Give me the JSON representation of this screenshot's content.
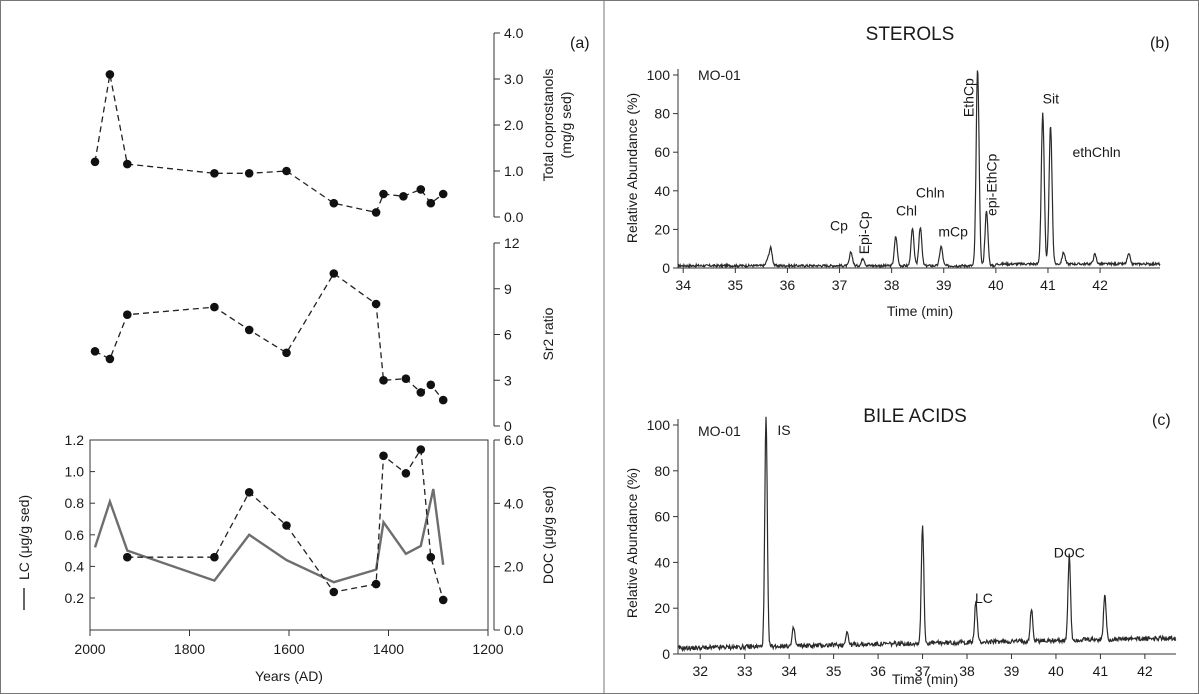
{
  "chart_data": [
    {
      "id": "a",
      "type": "line",
      "panel_label": "(a)",
      "xlabel": "Years (AD)",
      "xlim": [
        2000,
        1200
      ],
      "xticks": [
        "2000",
        "1800",
        "1600",
        "1400",
        "1200"
      ],
      "subplots": [
        {
          "ylabel_lines": [
            "Total coprostanols",
            "(mg/g sed)"
          ],
          "ylim": [
            0,
            4
          ],
          "yticks": [
            "0.0",
            "1.0",
            "2.0",
            "3.0",
            "4.0"
          ],
          "series": [
            {
              "style": "dashed-markers",
              "x": [
                1990,
                1960,
                1925,
                1750,
                1680,
                1605,
                1510,
                1425,
                1410,
                1370,
                1335,
                1315,
                1290
              ],
              "y": [
                1.2,
                3.1,
                1.15,
                0.95,
                0.95,
                1.0,
                0.3,
                0.1,
                0.5,
                0.45,
                0.6,
                0.3,
                0.5
              ]
            }
          ]
        },
        {
          "ylabel_lines": [
            "Sr2 ratio"
          ],
          "ylim": [
            0,
            12
          ],
          "yticks": [
            "0",
            "3",
            "6",
            "9",
            "12"
          ],
          "series": [
            {
              "style": "dashed-markers",
              "x": [
                1990,
                1960,
                1925,
                1750,
                1680,
                1605,
                1510,
                1425,
                1410,
                1365,
                1335,
                1315,
                1290
              ],
              "y": [
                4.9,
                4.4,
                7.3,
                7.8,
                6.3,
                4.8,
                10.0,
                8.0,
                3.0,
                3.1,
                2.2,
                2.7,
                1.7
              ]
            }
          ]
        },
        {
          "ylabel_left": "LC (μg/g sed)",
          "ylabel_right": "DOC (μg/g sed)",
          "ylim_left": [
            0.1,
            1.2
          ],
          "yticks_left": [
            "0.2",
            "0.4",
            "0.6",
            "0.8",
            "1.0",
            "1.2"
          ],
          "ylim_right": [
            0,
            6
          ],
          "yticks_right": [
            "0.0",
            "2.0",
            "4.0",
            "6.0"
          ],
          "series": [
            {
              "name": "LC",
              "style": "solid",
              "axis": "left",
              "x": [
                1990,
                1960,
                1925,
                1750,
                1680,
                1605,
                1510,
                1425,
                1410,
                1365,
                1335,
                1310,
                1290
              ],
              "y": [
                0.52,
                0.81,
                0.5,
                0.31,
                0.6,
                0.44,
                0.3,
                0.38,
                0.68,
                0.48,
                0.53,
                0.89,
                0.41
              ]
            },
            {
              "name": "DOC",
              "style": "dashed-markers",
              "axis": "right",
              "x": [
                1925,
                1750,
                1680,
                1605,
                1510,
                1425,
                1410,
                1365,
                1335,
                1315,
                1290
              ],
              "y": [
                2.3,
                2.3,
                4.35,
                3.3,
                1.2,
                1.45,
                5.5,
                4.95,
                5.7,
                2.3,
                0.95
              ]
            }
          ]
        }
      ]
    },
    {
      "id": "b",
      "type": "line",
      "title": "STEROLS",
      "panel_label": "(b)",
      "sample": "MO-01",
      "xlabel": "Time (min)",
      "ylabel": "Relative Abundance (%)",
      "xlim": [
        33.9,
        43.15
      ],
      "ylim": [
        0,
        100
      ],
      "xticks": [
        "34",
        "35",
        "36",
        "37",
        "38",
        "39",
        "40",
        "41",
        "42"
      ],
      "yticks": [
        "0",
        "20",
        "40",
        "60",
        "80",
        "100"
      ],
      "peaks": [
        {
          "rt": 35.62,
          "height": 3,
          "label": ""
        },
        {
          "rt": 35.68,
          "height": 9,
          "label": ""
        },
        {
          "rt": 37.22,
          "height": 7,
          "label": "Cp"
        },
        {
          "rt": 37.45,
          "height": 4,
          "label": "Epi-Cp"
        },
        {
          "rt": 38.08,
          "height": 15,
          "label": ""
        },
        {
          "rt": 38.4,
          "height": 19,
          "label": "Chl"
        },
        {
          "rt": 38.55,
          "height": 20,
          "label": "Chln"
        },
        {
          "rt": 38.95,
          "height": 10,
          "label": "mCp"
        },
        {
          "rt": 39.65,
          "height": 102,
          "label": "EthCp"
        },
        {
          "rt": 39.82,
          "height": 28,
          "label": "epi-EthCp"
        },
        {
          "rt": 40.9,
          "height": 78,
          "label": "Sit"
        },
        {
          "rt": 41.05,
          "height": 72,
          "label": "ethChln"
        },
        {
          "rt": 41.3,
          "height": 6,
          "label": ""
        },
        {
          "rt": 41.9,
          "height": 5,
          "label": ""
        },
        {
          "rt": 42.55,
          "height": 5,
          "label": ""
        }
      ]
    },
    {
      "id": "c",
      "type": "line",
      "title": "BILE ACIDS",
      "panel_label": "(c)",
      "sample": "MO-01",
      "xlabel": "Time (min)",
      "ylabel": "Relative Abundance (%)",
      "xlim": [
        31.5,
        42.7
      ],
      "ylim": [
        0,
        100
      ],
      "xticks": [
        "32",
        "33",
        "34",
        "35",
        "36",
        "37",
        "38",
        "39",
        "40",
        "41",
        "42"
      ],
      "yticks": [
        "0",
        "20",
        "40",
        "60",
        "80",
        "100"
      ],
      "peaks": [
        {
          "rt": 33.48,
          "height": 100,
          "label": "IS"
        },
        {
          "rt": 34.1,
          "height": 8,
          "label": ""
        },
        {
          "rt": 35.3,
          "height": 6,
          "label": ""
        },
        {
          "rt": 37.0,
          "height": 52,
          "label": ""
        },
        {
          "rt": 38.2,
          "height": 18,
          "label": "LC"
        },
        {
          "rt": 39.45,
          "height": 14,
          "label": ""
        },
        {
          "rt": 40.3,
          "height": 37,
          "label": "DOC"
        },
        {
          "rt": 41.1,
          "height": 20,
          "label": ""
        }
      ]
    }
  ]
}
